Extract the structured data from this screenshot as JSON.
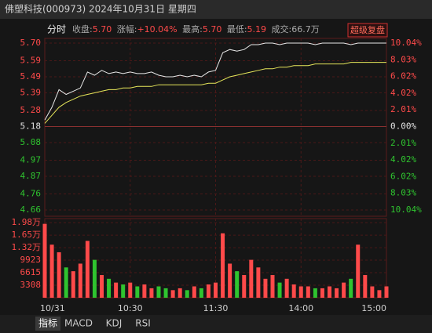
{
  "header": {
    "title": "佛塑科技(000973)  2024年10月31日  星期四"
  },
  "tabs": [
    "指标",
    "MACD",
    "KDJ",
    "RSI"
  ],
  "chart_data": {
    "type": "intraday",
    "mode_label": "分时",
    "stats": [
      {
        "label": "收盘:",
        "value": "5.70"
      },
      {
        "label": "涨幅:",
        "value": "+10.04%"
      },
      {
        "label": "最高:",
        "value": "5.70"
      },
      {
        "label": "最低:",
        "value": "5.19"
      },
      {
        "label": "成交:",
        "value": "66.7万"
      }
    ],
    "button": "超级复盘",
    "categories": [
      "10/31",
      null,
      null,
      null,
      null,
      null,
      null,
      null,
      null,
      null,
      null,
      null,
      "10:30",
      null,
      null,
      null,
      null,
      null,
      null,
      null,
      null,
      null,
      null,
      null,
      "11:30",
      null,
      null,
      null,
      null,
      null,
      null,
      null,
      null,
      null,
      null,
      null,
      "14:00",
      null,
      null,
      null,
      null,
      null,
      null,
      null,
      null,
      null,
      null,
      null,
      "15:00"
    ],
    "ylim": [
      4.66,
      5.7
    ],
    "yticks": [
      {
        "value": 5.7,
        "label": "5.70"
      },
      5.59,
      5.49,
      5.39,
      5.28,
      5.18,
      5.08,
      4.97,
      4.87,
      4.76,
      4.66
    ],
    "y2lim": [
      -10.04,
      10.04
    ],
    "y2ticks": [
      {
        "value": 10.04,
        "label": "10.04%"
      },
      {
        "value": 8.03,
        "label": "8.03%"
      },
      {
        "value": 6.02,
        "label": "6.02%"
      },
      {
        "value": 4.02,
        "label": "4.02%"
      },
      {
        "value": 2.01,
        "label": "2.01%"
      },
      {
        "value": 0,
        "label": "0.00%"
      },
      {
        "value": -2.01,
        "label": "2.01%"
      },
      {
        "value": -4.02,
        "label": "4.02%"
      },
      {
        "value": -6.02,
        "label": "6.02%"
      },
      {
        "value": -8.03,
        "label": "8.03%"
      },
      {
        "value": -10.04,
        "label": "10.04%"
      }
    ],
    "grid": true,
    "up_color": "#ff4a4a",
    "down_color": "#2fc42f",
    "series": [
      {
        "color": "#e8e8e8",
        "values": [
          5.22,
          5.3,
          5.41,
          5.38,
          5.4,
          5.42,
          5.52,
          5.5,
          5.53,
          5.51,
          5.52,
          5.51,
          5.52,
          5.51,
          5.51,
          5.52,
          5.5,
          5.49,
          5.49,
          5.5,
          5.49,
          5.5,
          5.49,
          5.52,
          5.53,
          5.64,
          5.66,
          5.65,
          5.66,
          5.69,
          5.69,
          5.7,
          5.7,
          5.69,
          5.7,
          5.7,
          5.7,
          5.7,
          5.69,
          5.7,
          5.7,
          5.7,
          5.7,
          5.69,
          5.7,
          5.7,
          5.7,
          5.7,
          5.7
        ]
      },
      {
        "color": "#e6e65a",
        "values": [
          5.2,
          5.25,
          5.3,
          5.33,
          5.35,
          5.37,
          5.38,
          5.39,
          5.4,
          5.41,
          5.41,
          5.42,
          5.42,
          5.43,
          5.43,
          5.43,
          5.44,
          5.44,
          5.44,
          5.44,
          5.44,
          5.44,
          5.44,
          5.45,
          5.45,
          5.47,
          5.49,
          5.5,
          5.51,
          5.52,
          5.53,
          5.54,
          5.54,
          5.55,
          5.55,
          5.56,
          5.56,
          5.56,
          5.57,
          5.57,
          5.57,
          5.57,
          5.57,
          5.58,
          5.58,
          5.58,
          5.58,
          5.58,
          5.58
        ]
      }
    ],
    "volume": {
      "ylim": [
        0,
        19846
      ],
      "yticks": [
        {
          "value": 19800,
          "label": "1.98万"
        },
        {
          "value": 16500,
          "label": "1.65万"
        },
        {
          "value": 13200,
          "label": "1.32万"
        },
        9923,
        6615,
        3308
      ],
      "values": [
        19500,
        14000,
        12000,
        8000,
        7000,
        9000,
        15000,
        10000,
        6000,
        5000,
        4000,
        3500,
        4000,
        3000,
        3500,
        2500,
        3000,
        2500,
        2000,
        2500,
        2000,
        3000,
        2500,
        3500,
        4000,
        17000,
        9000,
        7000,
        6000,
        10000,
        8000,
        5000,
        6000,
        4000,
        5000,
        3500,
        3000,
        3000,
        2500,
        2500,
        3000,
        2500,
        4000,
        5000,
        14000,
        6000,
        3000,
        2000,
        3000
      ]
    }
  }
}
